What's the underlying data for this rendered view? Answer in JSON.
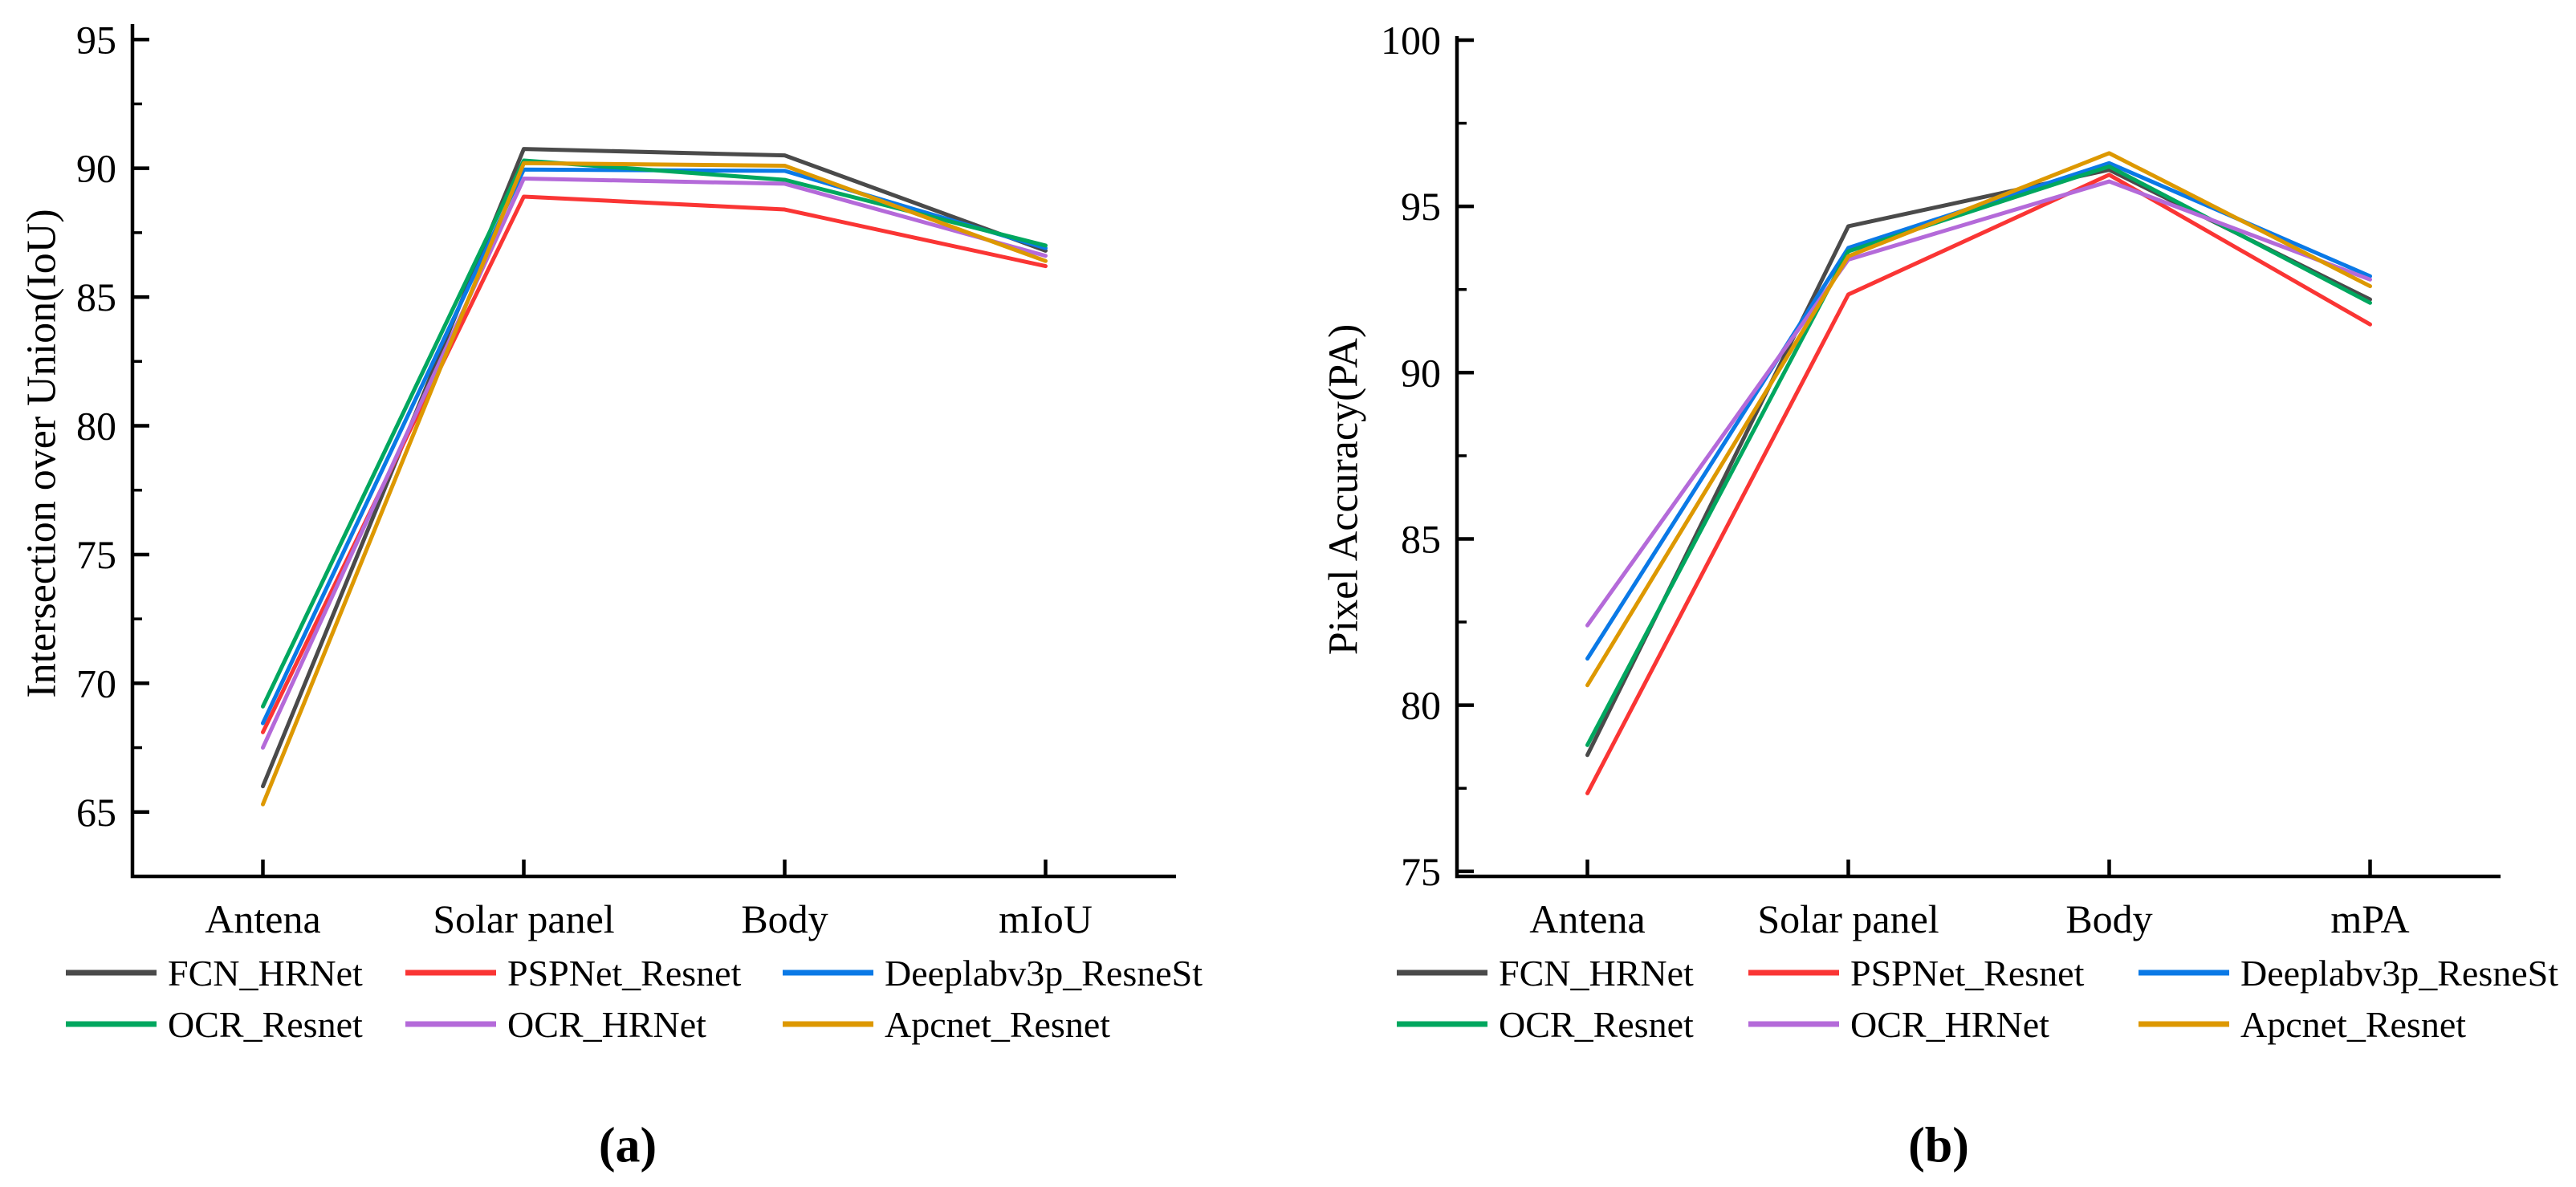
{
  "figure_background": "#ffffff",
  "axis_color": "#000000",
  "chart_data": [
    {
      "type": "line",
      "id": "a",
      "caption": "(a)",
      "title": "",
      "xlabel": "",
      "ylabel": "Intersection over Union(IoU)",
      "categories": [
        "Antena",
        "Solar panel",
        "Body",
        "mIoU"
      ],
      "ylim": [
        62.5,
        95.6
      ],
      "yticks": [
        65,
        70,
        75,
        80,
        85,
        90,
        95
      ],
      "yminor_ticks": [
        67.5,
        72.5,
        77.5,
        82.5,
        87.5,
        92.5
      ],
      "grid": false,
      "legend_position": "below",
      "series": [
        {
          "name": "FCN_HRNet",
          "color": "#4a4a4a",
          "values": [
            66.0,
            90.75,
            90.5,
            86.8
          ]
        },
        {
          "name": "PSPNet_Resnet",
          "color": "#fa3534",
          "values": [
            68.1,
            88.9,
            88.4,
            86.2
          ]
        },
        {
          "name": "Deeplabv3p_ResneSt",
          "color": "#0a79e6",
          "values": [
            68.45,
            89.95,
            89.9,
            86.9
          ]
        },
        {
          "name": "OCR_Resnet",
          "color": "#00a75f",
          "values": [
            69.1,
            90.3,
            89.55,
            87.0
          ]
        },
        {
          "name": "OCR_HRNet",
          "color": "#b46ad9",
          "values": [
            67.5,
            89.6,
            89.4,
            86.6
          ]
        },
        {
          "name": "Apcnet_Resnet",
          "color": "#dd9800",
          "values": [
            65.3,
            90.2,
            90.1,
            86.4
          ]
        }
      ]
    },
    {
      "type": "line",
      "id": "b",
      "caption": "(b)",
      "title": "",
      "xlabel": "",
      "ylabel": "Pixel Accuracy(PA)",
      "categories": [
        "Antena",
        "Solar panel",
        "Body",
        "mPA"
      ],
      "ylim": [
        74.85,
        100.12
      ],
      "yticks": [
        75,
        80,
        85,
        90,
        95,
        100
      ],
      "yminor_ticks": [
        77.5,
        82.5,
        87.5,
        92.5,
        97.5
      ],
      "grid": false,
      "legend_position": "below",
      "series": [
        {
          "name": "FCN_HRNet",
          "color": "#4a4a4a",
          "values": [
            78.5,
            94.4,
            96.1,
            92.2
          ]
        },
        {
          "name": "PSPNet_Resnet",
          "color": "#fa3534",
          "values": [
            77.35,
            92.35,
            95.95,
            91.45
          ]
        },
        {
          "name": "Deeplabv3p_ResneSt",
          "color": "#0a79e6",
          "values": [
            81.4,
            93.75,
            96.3,
            92.9
          ]
        },
        {
          "name": "OCR_Resnet",
          "color": "#00a75f",
          "values": [
            78.8,
            93.65,
            96.2,
            92.1
          ]
        },
        {
          "name": "OCR_HRNet",
          "color": "#b46ad9",
          "values": [
            82.4,
            93.4,
            95.75,
            92.8
          ]
        },
        {
          "name": "Apcnet_Resnet",
          "color": "#dd9800",
          "values": [
            80.6,
            93.5,
            96.6,
            92.6
          ]
        }
      ]
    }
  ],
  "legend": {
    "items": [
      {
        "label": "FCN_HRNet",
        "color": "#4a4a4a"
      },
      {
        "label": "PSPNet_Resnet",
        "color": "#fa3534"
      },
      {
        "label": "Deeplabv3p_ResneSt",
        "color": "#0a79e6"
      },
      {
        "label": "OCR_Resnet",
        "color": "#00a75f"
      },
      {
        "label": "OCR_HRNet",
        "color": "#b46ad9"
      },
      {
        "label": "Apcnet_Resnet",
        "color": "#dd9800"
      }
    ]
  }
}
